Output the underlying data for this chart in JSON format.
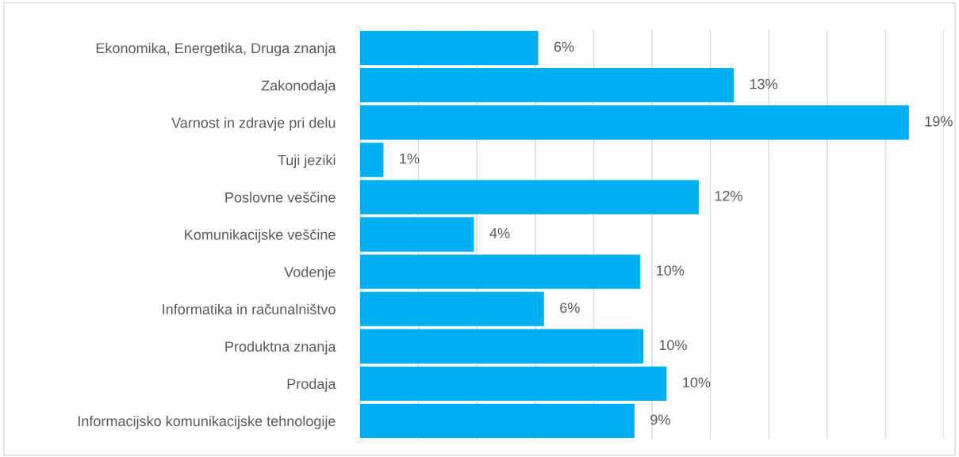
{
  "chart_data": {
    "type": "bar",
    "orientation": "horizontal",
    "color": "#00b0f0",
    "categories": [
      "Ekonomika, Energetika, Druga znanja",
      "Zakonodaja",
      "Varnost in zdravje pri delu",
      "Tuji jeziki",
      "Poslovne veščine",
      "Komunikacijske veščine",
      "Vodenje",
      "Informatika in računalništvo",
      "Produktna znanja",
      "Prodaja",
      "Informacijsko komunikacijske tehnologije"
    ],
    "values": [
      6.1,
      12.8,
      18.8,
      0.8,
      11.6,
      3.9,
      9.6,
      6.3,
      9.7,
      10.5,
      9.4
    ],
    "value_labels": [
      "6%",
      "13%",
      "19%",
      "1%",
      "12%",
      "4%",
      "10%",
      "6%",
      "10%",
      "10%",
      "9%"
    ],
    "xlim": [
      0,
      20
    ],
    "xticks": [
      {
        "value": 0,
        "label": null
      },
      {
        "value": 2,
        "label": null
      },
      {
        "value": 4,
        "label": null
      },
      {
        "value": 6,
        "label": null
      },
      {
        "value": 8,
        "label": null
      },
      {
        "value": 10,
        "label": null
      },
      {
        "value": 12,
        "label": null
      },
      {
        "value": 14,
        "label": null
      },
      {
        "value": 16,
        "label": null
      },
      {
        "value": 18,
        "label": null
      },
      {
        "value": 20,
        "label": null
      }
    ],
    "grid": "x",
    "tick_labels": "y"
  }
}
